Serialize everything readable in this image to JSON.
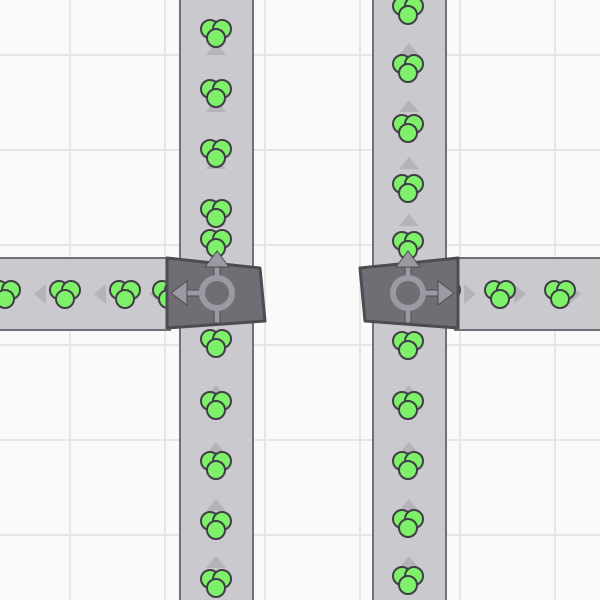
{
  "colors": {
    "background": "#fafafa",
    "grid": "#e6e6e6",
    "belt": "#c9c9ce",
    "belt_border": "#6f6f78",
    "belt_arrow": "#b3b3b8",
    "splitter": "#6e6e74",
    "splitter_border": "#4c4c52",
    "splitter_symbol": "#9a9aa2",
    "item": "#7ef06a",
    "item_border": "#3f3f45"
  },
  "buildings": [
    {
      "type": "splitter",
      "outputs": [
        "up",
        "left"
      ]
    },
    {
      "type": "splitter",
      "outputs": [
        "up",
        "right"
      ]
    }
  ]
}
